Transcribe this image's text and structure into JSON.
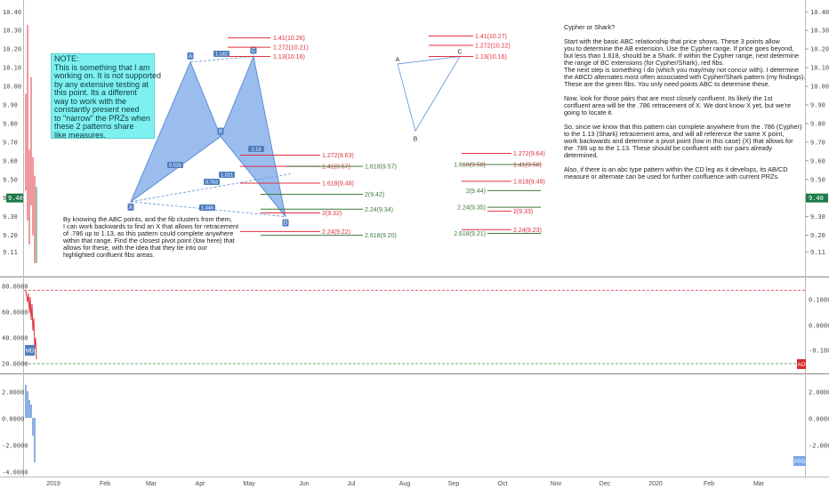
{
  "colors": {
    "red": "#e0303f",
    "green": "#3d7a3d",
    "blue": "#5b8fd6",
    "fill": "#7aa7e8",
    "note_bg": "#7ff0f0",
    "axis": "#555555",
    "badge": "#4f7fc0",
    "dashed_red": "#e0303f"
  },
  "note": {
    "lines": [
      "NOTE:",
      "This is something that I am",
      "working on. It is not supported",
      "by any extensive testing at",
      "this point. Its a different",
      "way to work with the",
      "constantly present need",
      "to \"narrow\" the PRZs when",
      "these 2 patterns share",
      "like measures."
    ]
  },
  "explanation_left": {
    "lines": [
      "By knowing the ABC points, and the fib clusters from them,",
      "I can work backwards to find an X that allows for retracement",
      "of .786 up to 1.13, as this pattern could complete anywhere",
      "within that range. Find the closest pivot point (low here) that",
      "allows for these, with the idea that they tie into our",
      "highlighted confluent fibs areas."
    ]
  },
  "explanation_right": {
    "title": "Cypher or Shark?",
    "p1": [
      "Start with the basic ABC relationship that price shows. These 3 points allow",
      "you to determine the AB extension. Use the Cypher range. If price goes beyond,",
      "but less than 1.618, should be a Shark. If within the Cypher range, next determine",
      "the range of BC extensions (for Cypher/Shark), red fibs.",
      "The next step is something I do (which you may/may not concur with). I determine",
      "the ABCD alternates most often associated with Cypher/Shark pattern (my findings).",
      "These are the green fibs. You only need points ABC to determine these."
    ],
    "p2": [
      "Now, look for those pairs that are most closely confluent. Its likely the 1st",
      "confluent area will be the .786 retracement of X. We dont know X yet, but we're",
      "going to locate it."
    ],
    "p3": [
      "So, since we know that this pattern can complete anywhere from the .786 (Cypher)",
      "to the 1.13 (Shark) retracement area, and will all reference the same X point,",
      "work backwards and determine a pivot point (low in this case) (X) that allows for",
      "the .786 up to the 1.13. These should be confluent with our pairs already",
      "determined."
    ],
    "p4": [
      "Also, if there is an abc type pattern within the CD leg as it develops, its AB/CD",
      "measure or alternate can be used for further confluence with current PRZs."
    ]
  },
  "left_pattern": {
    "points": [
      "X",
      "A",
      "B",
      "C",
      "D"
    ],
    "ratios": [
      "0.526",
      "1.142",
      "0.763",
      "1.021",
      "1.13",
      "1.446"
    ],
    "upper_fibs": [
      "1.41(10.26)",
      "1.272(10.21)",
      "1.13(10.16)"
    ],
    "red_fibs": [
      "1.272(9.63)",
      "1.41(9.57)",
      "1.618(9.48)",
      "2(9.32)",
      "2.24(9.22)"
    ],
    "green_fibs": [
      "1.618(9.57)",
      "2(9.42)",
      "2.24(9.34)",
      "2.618(9.20)"
    ]
  },
  "right_pattern": {
    "points": [
      "A",
      "B",
      "C"
    ],
    "upper_fibs": [
      "1.41(10.27)",
      "1.272(10.22)",
      "1.13(10.16)"
    ],
    "red_fibs": [
      "1.272(9.64)",
      "1.41(9.58)",
      "1.618(9.49)",
      "2(9.33)",
      "2.24(9.23)"
    ],
    "green_fibs": [
      "1.618(9.58)",
      "2(9.44)",
      "2.24(9.35)",
      "2.618(9.21)"
    ]
  },
  "chart_data": [
    {
      "type": "line",
      "panel": "price",
      "y_ticks": [
        "10.40",
        "10.30",
        "10.20",
        "10.10",
        "10.00",
        "9.90",
        "9.80",
        "9.70",
        "9.60",
        "9.50",
        "9.40",
        "9.30",
        "9.20",
        "9.11"
      ],
      "price_tag": "9.40",
      "ylim": [
        9.05,
        10.43
      ],
      "x_ticks": [
        "2019",
        "Feb",
        "Mar",
        "Apr",
        "May",
        "Jun",
        "Jul",
        "Aug",
        "Sep",
        "Oct",
        "Nov",
        "Dec",
        "2020",
        "Feb",
        "Mar"
      ],
      "harmonic_left": {
        "X": 9.38,
        "A": 10.13,
        "B": 9.73,
        "C": 10.16,
        "D": 9.3
      },
      "harmonic_right": {
        "A": 10.12,
        "B": 9.76,
        "C": 10.16
      }
    },
    {
      "type": "line",
      "panel": "indicator_mid",
      "left_ticks": [
        "80.0000",
        "60.0000",
        "40.0000",
        "20.0000"
      ],
      "right_ticks": [
        "0.1000",
        "0.0000",
        "-0.1000"
      ],
      "left_badge": "MD",
      "right_badge": "AO",
      "hlines": [
        77,
        20
      ]
    },
    {
      "type": "bar",
      "panel": "indicator_low",
      "left_ticks": [
        "2.0000",
        "0.0000",
        "-2.0000",
        "-4.0000"
      ],
      "right_ticks": [
        "2.0000",
        "0.0000",
        "-2.0000"
      ],
      "right_badge": "PPO"
    }
  ]
}
